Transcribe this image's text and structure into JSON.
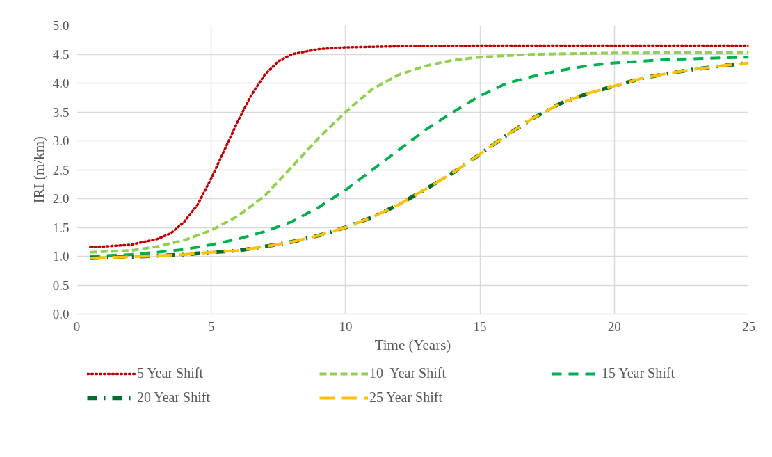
{
  "chart_data": {
    "type": "line",
    "xlabel": "Time (Years)",
    "ylabel": "IRI (m/km)",
    "xlim": [
      0,
      25
    ],
    "xticks": [
      0,
      5,
      10,
      15,
      20,
      25
    ],
    "ylim": [
      0,
      5
    ],
    "yticks": [
      {
        "value": 0,
        "label": "0.0"
      },
      {
        "value": 0.5,
        "label": "0.5"
      },
      {
        "value": 1,
        "label": "1.0"
      },
      {
        "value": 1.5,
        "label": "1.5"
      },
      {
        "value": 2,
        "label": "2.0"
      },
      {
        "value": 2.5,
        "label": "2.5"
      },
      {
        "value": 3,
        "label": "3.0"
      },
      {
        "value": 3.5,
        "label": "3.5"
      },
      {
        "value": 4,
        "label": "4.0"
      },
      {
        "value": 4.5,
        "label": "4.5"
      },
      {
        "value": 5,
        "label": "5.0"
      }
    ],
    "grid": true,
    "legend": "bottom",
    "marker": "none",
    "series": [
      {
        "name": "5 Year Shift",
        "color": "#c00000",
        "line_style": "dotted",
        "x": [
          0.5,
          1,
          2,
          3,
          3.5,
          4,
          4.5,
          5,
          5.5,
          6,
          6.5,
          7,
          7.5,
          8,
          9,
          10,
          12,
          15,
          20,
          25
        ],
        "values": [
          1.16,
          1.17,
          1.2,
          1.3,
          1.4,
          1.6,
          1.9,
          2.35,
          2.85,
          3.35,
          3.8,
          4.15,
          4.38,
          4.5,
          4.59,
          4.62,
          4.64,
          4.65,
          4.65,
          4.65
        ]
      },
      {
        "name": "10  Year Shift",
        "color": "#92d050",
        "line_style": "dashed",
        "x": [
          0.5,
          2,
          3,
          4,
          5,
          6,
          7,
          8,
          9,
          10,
          11,
          12,
          13,
          14,
          15,
          17,
          20,
          25
        ],
        "values": [
          1.07,
          1.1,
          1.17,
          1.28,
          1.45,
          1.7,
          2.05,
          2.55,
          3.05,
          3.5,
          3.9,
          4.15,
          4.3,
          4.4,
          4.45,
          4.5,
          4.52,
          4.53
        ]
      },
      {
        "name": "15 Year Shift",
        "color": "#00b050",
        "line_style": "dashed",
        "x": [
          0.5,
          2,
          3,
          4,
          5,
          6,
          7,
          8,
          9,
          10,
          11,
          12,
          13,
          14,
          15,
          16,
          17,
          18,
          19,
          20,
          22,
          25
        ],
        "values": [
          1.0,
          1.03,
          1.07,
          1.12,
          1.2,
          1.3,
          1.43,
          1.6,
          1.85,
          2.15,
          2.5,
          2.85,
          3.2,
          3.5,
          3.78,
          4.0,
          4.12,
          4.22,
          4.3,
          4.35,
          4.41,
          4.45
        ]
      },
      {
        "name": "20 Year Shift",
        "color": "#006b2e",
        "line_style": "dashdot",
        "x": [
          0.5,
          2,
          3,
          4,
          5,
          6,
          7,
          8,
          9,
          10,
          11,
          12,
          13,
          14,
          15,
          16,
          17,
          18,
          19,
          20,
          21,
          22,
          23,
          24,
          25
        ],
        "values": [
          0.97,
          0.99,
          1.01,
          1.03,
          1.07,
          1.1,
          1.17,
          1.25,
          1.36,
          1.5,
          1.68,
          1.9,
          2.17,
          2.45,
          2.77,
          3.1,
          3.4,
          3.65,
          3.82,
          3.95,
          4.08,
          4.17,
          4.24,
          4.3,
          4.35
        ]
      },
      {
        "name": "25 Year Shift",
        "color": "#ffc000",
        "line_style": "longdash",
        "x": [
          0.5,
          2,
          3,
          4,
          5,
          6,
          7,
          8,
          9,
          10,
          11,
          12,
          13,
          14,
          15,
          16,
          17,
          18,
          19,
          20,
          21,
          22,
          23,
          24,
          25
        ],
        "values": [
          0.97,
          0.99,
          1.01,
          1.03,
          1.07,
          1.1,
          1.17,
          1.25,
          1.36,
          1.5,
          1.68,
          1.9,
          2.17,
          2.45,
          2.77,
          3.1,
          3.4,
          3.65,
          3.82,
          3.95,
          4.08,
          4.17,
          4.24,
          4.3,
          4.35
        ]
      }
    ]
  }
}
